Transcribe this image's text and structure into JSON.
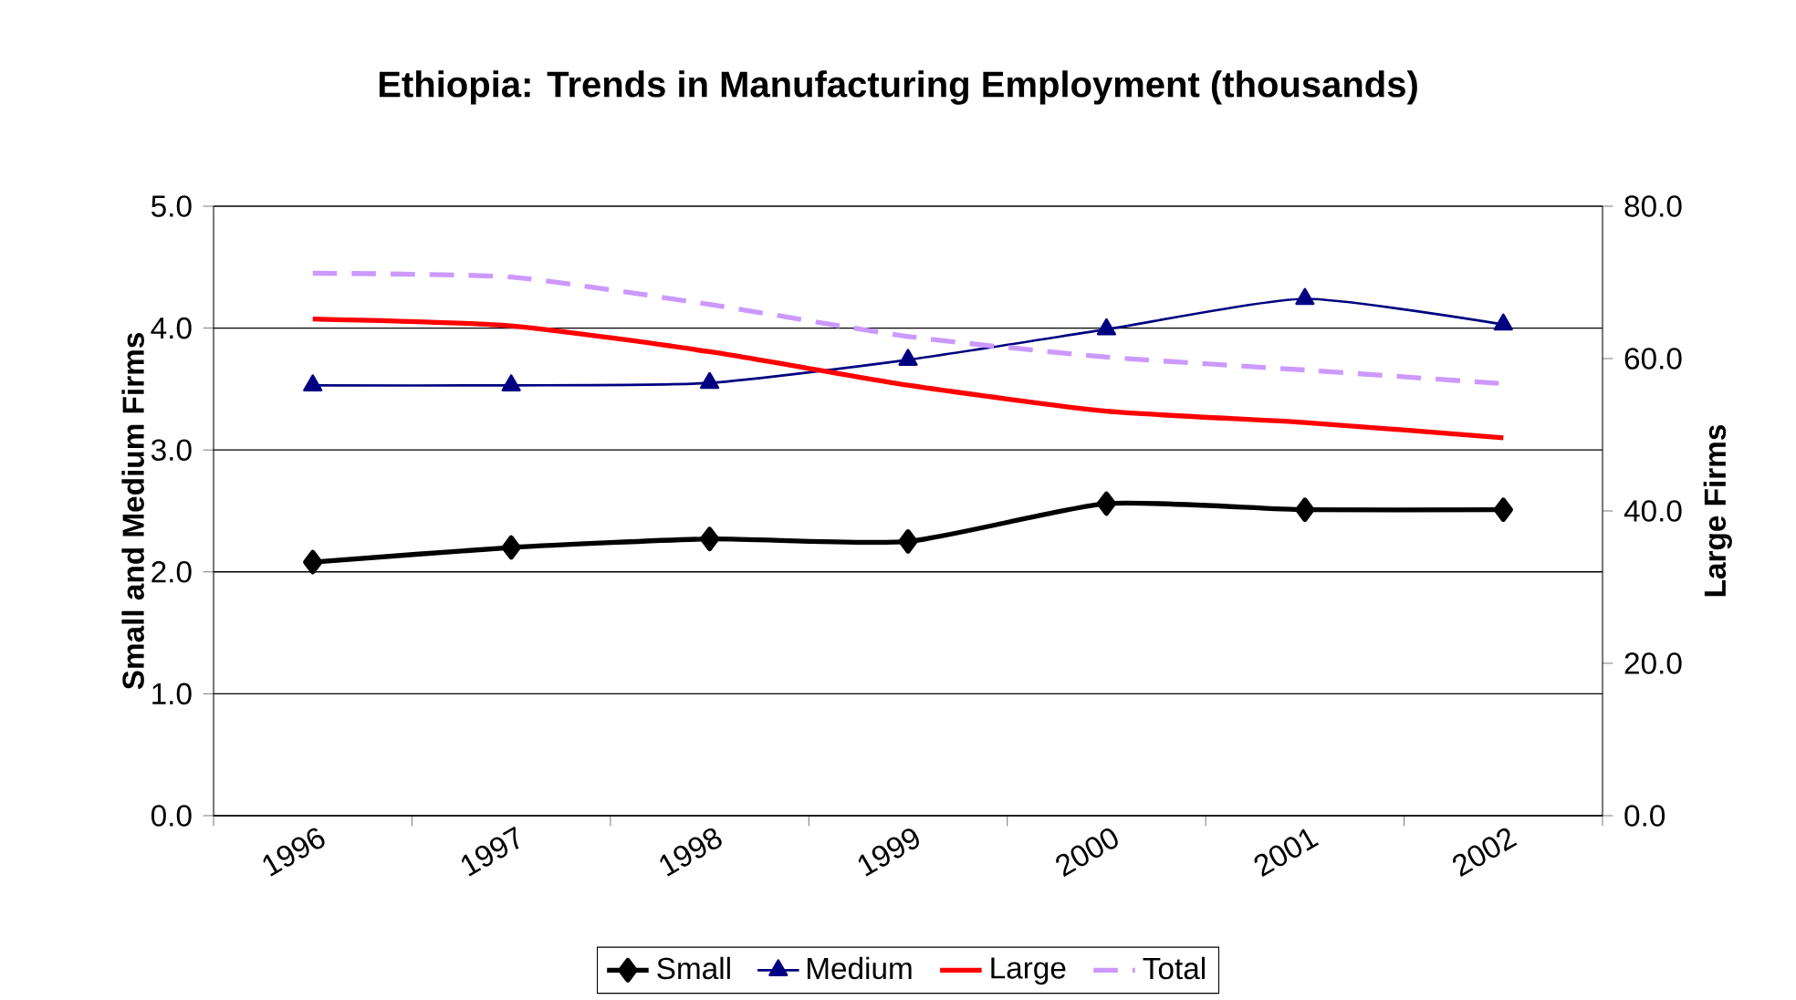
{
  "chart_data": {
    "type": "line",
    "title": "Ethiopia: Trends in Manufacturing Employment (thousands)",
    "ylabel": "Small and Medium Firms",
    "y2label": "Large Firms",
    "categories": [
      "1996",
      "1997",
      "1998",
      "1999",
      "2000",
      "2001",
      "2002"
    ],
    "series": [
      {
        "name": "Small",
        "color": "#000000",
        "marker": "diamond",
        "line_style": "solid",
        "values": [
          2.08,
          2.2,
          2.27,
          2.25,
          2.56,
          2.51,
          2.51
        ]
      },
      {
        "name": "Medium",
        "color": "#000080",
        "marker": "triangle",
        "line_style": "solid",
        "values": [
          3.53,
          3.53,
          3.55,
          3.74,
          3.99,
          4.24,
          4.03
        ]
      },
      {
        "name": "Large",
        "color": "#ff0000",
        "marker": "none",
        "line_style": "solid",
        "axis": "y2",
        "values": [
          65.2,
          64.3,
          60.9,
          56.5,
          53.1,
          51.6,
          49.6
        ]
      },
      {
        "name": "Total",
        "color": "#cc99ff",
        "marker": "none",
        "line_style": "dashed",
        "axis": "y2",
        "values": [
          71.2,
          70.7,
          67.1,
          62.9,
          60.2,
          58.5,
          56.7
        ]
      }
    ],
    "ylim": [
      0,
      5
    ],
    "yticks": [
      {
        "value": 0,
        "label": "0.0"
      },
      {
        "value": 1,
        "label": "1.0"
      },
      {
        "value": 2,
        "label": "2.0"
      },
      {
        "value": 3,
        "label": "3.0"
      },
      {
        "value": 4,
        "label": "4.0"
      },
      {
        "value": 5,
        "label": "5.0"
      }
    ],
    "y2lim": [
      0,
      80
    ],
    "y2ticks": [
      {
        "value": 0,
        "label": "0.0"
      },
      {
        "value": 20,
        "label": "20.0"
      },
      {
        "value": 40,
        "label": "40.0"
      },
      {
        "value": 60,
        "label": "60.0"
      },
      {
        "value": 80,
        "label": "80.0"
      }
    ],
    "grid": "y",
    "legend": "bottom"
  }
}
